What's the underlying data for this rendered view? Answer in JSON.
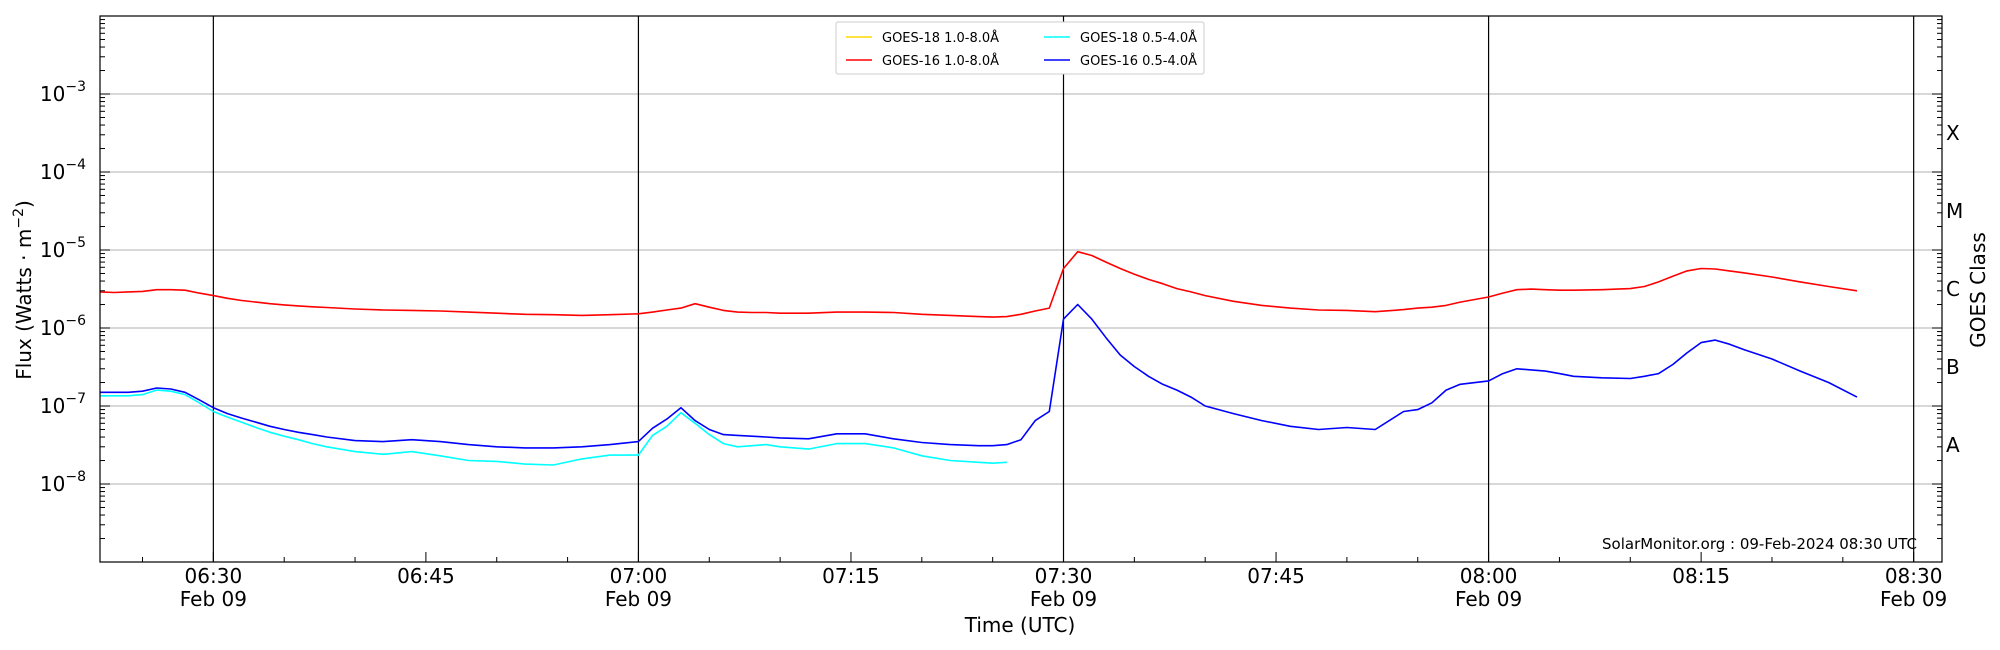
{
  "chart_data": {
    "type": "line",
    "xlabel": "Time (UTC)",
    "ylabel": "Flux (Watts · m",
    "ylabel_sup": "−2",
    "ylabel_close": ")",
    "right_label": "GOES Class",
    "credit": "SolarMonitor.org : 09-Feb-2024 08:30 UTC",
    "y_scale": "log",
    "ylim": [
      1e-09,
      0.01
    ],
    "xlim": [
      "06:22",
      "08:32"
    ],
    "grid": "horizontal",
    "legend_position": "top-center",
    "y_ticks": [
      {
        "exp": -8,
        "base": "10",
        "sup": "−8"
      },
      {
        "exp": -7,
        "base": "10",
        "sup": "−7"
      },
      {
        "exp": -6,
        "base": "10",
        "sup": "−6"
      },
      {
        "exp": -5,
        "base": "10",
        "sup": "−5"
      },
      {
        "exp": -4,
        "base": "10",
        "sup": "−4"
      },
      {
        "exp": -3,
        "base": "10",
        "sup": "−3"
      }
    ],
    "x_ticks": [
      {
        "t": "06:30",
        "label": "06:30",
        "date": "Feb 09",
        "major": true
      },
      {
        "t": "06:45",
        "label": "06:45",
        "date": "",
        "major": false
      },
      {
        "t": "07:00",
        "label": "07:00",
        "date": "Feb 09",
        "major": true
      },
      {
        "t": "07:15",
        "label": "07:15",
        "date": "",
        "major": false
      },
      {
        "t": "07:30",
        "label": "07:30",
        "date": "Feb 09",
        "major": true
      },
      {
        "t": "07:45",
        "label": "07:45",
        "date": "",
        "major": false
      },
      {
        "t": "08:00",
        "label": "08:00",
        "date": "Feb 09",
        "major": true
      },
      {
        "t": "08:15",
        "label": "08:15",
        "date": "",
        "major": false
      },
      {
        "t": "08:30",
        "label": "08:30",
        "date": "Feb 09",
        "major": true
      }
    ],
    "goes_classes": [
      {
        "label": "A",
        "exp": -7.5
      },
      {
        "label": "B",
        "exp": -6.5
      },
      {
        "label": "C",
        "exp": -5.5
      },
      {
        "label": "M",
        "exp": -4.5
      },
      {
        "label": "X",
        "exp": -3.5
      }
    ],
    "series": [
      {
        "name": "GOES-18 1.0-8.0Å",
        "color": "#ffd700",
        "x": [],
        "y": []
      },
      {
        "name": "GOES-16 1.0-8.0Å",
        "color": "#ff0000",
        "x": [
          "06:22",
          "06:23",
          "06:24",
          "06:25",
          "06:26",
          "06:27",
          "06:28",
          "06:29",
          "06:30",
          "06:31",
          "06:32",
          "06:33",
          "06:34",
          "06:35",
          "06:36",
          "06:37",
          "06:38",
          "06:40",
          "06:42",
          "06:44",
          "06:46",
          "06:48",
          "06:50",
          "06:52",
          "06:54",
          "06:56",
          "06:58",
          "07:00",
          "07:01",
          "07:02",
          "07:03",
          "07:04",
          "07:05",
          "07:06",
          "07:07",
          "07:08",
          "07:09",
          "07:10",
          "07:12",
          "07:14",
          "07:16",
          "07:18",
          "07:20",
          "07:22",
          "07:24",
          "07:25",
          "07:26",
          "07:27",
          "07:28",
          "07:29",
          "07:30",
          "07:31",
          "07:32",
          "07:33",
          "07:34",
          "07:35",
          "07:36",
          "07:37",
          "07:38",
          "07:39",
          "07:40",
          "07:42",
          "07:44",
          "07:46",
          "07:48",
          "07:50",
          "07:52",
          "07:54",
          "07:55",
          "07:56",
          "07:57",
          "07:58",
          "08:00",
          "08:01",
          "08:02",
          "08:03",
          "08:04",
          "08:05",
          "08:06",
          "08:08",
          "08:10",
          "08:11",
          "08:12",
          "08:13",
          "08:14",
          "08:15",
          "08:16",
          "08:17",
          "08:18",
          "08:20",
          "08:22",
          "08:24",
          "08:26"
        ],
        "y": [
          2.9e-06,
          2.85e-06,
          2.9e-06,
          2.95e-06,
          3.1e-06,
          3.1e-06,
          3.05e-06,
          2.8e-06,
          2.6e-06,
          2.4e-06,
          2.25e-06,
          2.15e-06,
          2.05e-06,
          1.98e-06,
          1.92e-06,
          1.87e-06,
          1.83e-06,
          1.75e-06,
          1.7e-06,
          1.68e-06,
          1.65e-06,
          1.6e-06,
          1.55e-06,
          1.5e-06,
          1.48e-06,
          1.45e-06,
          1.48e-06,
          1.52e-06,
          1.6e-06,
          1.7e-06,
          1.8e-06,
          2.05e-06,
          1.85e-06,
          1.68e-06,
          1.6e-06,
          1.58e-06,
          1.58e-06,
          1.55e-06,
          1.55e-06,
          1.6e-06,
          1.6e-06,
          1.58e-06,
          1.5e-06,
          1.45e-06,
          1.4e-06,
          1.38e-06,
          1.4e-06,
          1.5e-06,
          1.65e-06,
          1.8e-06,
          5.8e-06,
          9.5e-06,
          8.5e-06,
          7e-06,
          5.8e-06,
          4.9e-06,
          4.2e-06,
          3.7e-06,
          3.2e-06,
          2.9e-06,
          2.6e-06,
          2.2e-06,
          1.95e-06,
          1.8e-06,
          1.7e-06,
          1.68e-06,
          1.62e-06,
          1.72e-06,
          1.8e-06,
          1.85e-06,
          1.95e-06,
          2.15e-06,
          2.5e-06,
          2.8e-06,
          3.1e-06,
          3.15e-06,
          3.1e-06,
          3.05e-06,
          3.05e-06,
          3.1e-06,
          3.2e-06,
          3.4e-06,
          3.9e-06,
          4.6e-06,
          5.4e-06,
          5.8e-06,
          5.7e-06,
          5.4e-06,
          5.1e-06,
          4.5e-06,
          3.9e-06,
          3.4e-06,
          3e-06
        ]
      },
      {
        "name": "GOES-18 0.5-4.0Å",
        "color": "#00ffff",
        "x": [
          "06:22",
          "06:23",
          "06:24",
          "06:25",
          "06:26",
          "06:27",
          "06:28",
          "06:29",
          "06:30",
          "06:31",
          "06:32",
          "06:33",
          "06:34",
          "06:35",
          "06:36",
          "06:37",
          "06:38",
          "06:40",
          "06:42",
          "06:44",
          "06:46",
          "06:48",
          "06:50",
          "06:52",
          "06:54",
          "06:56",
          "06:58",
          "07:00",
          "07:01",
          "07:02",
          "07:03",
          "07:04",
          "07:05",
          "07:06",
          "07:07",
          "07:08",
          "07:09",
          "07:10",
          "07:12",
          "07:14",
          "07:16",
          "07:18",
          "07:20",
          "07:22",
          "07:24",
          "07:25",
          "07:26"
        ],
        "y": [
          1.35e-07,
          1.35e-07,
          1.35e-07,
          1.4e-07,
          1.6e-07,
          1.55e-07,
          1.4e-07,
          1.1e-07,
          8.5e-08,
          7.2e-08,
          6.2e-08,
          5.3e-08,
          4.6e-08,
          4.1e-08,
          3.7e-08,
          3.3e-08,
          3e-08,
          2.6e-08,
          2.4e-08,
          2.6e-08,
          2.3e-08,
          2e-08,
          1.95e-08,
          1.8e-08,
          1.75e-08,
          2.1e-08,
          2.35e-08,
          2.35e-08,
          4.2e-08,
          5.5e-08,
          8.2e-08,
          6e-08,
          4.3e-08,
          3.3e-08,
          3e-08,
          3.1e-08,
          3.2e-08,
          3e-08,
          2.8e-08,
          3.3e-08,
          3.3e-08,
          2.9e-08,
          2.3e-08,
          2e-08,
          1.9e-08,
          1.85e-08,
          1.9e-08
        ]
      },
      {
        "name": "GOES-16 0.5-4.0Å",
        "color": "#0000ff",
        "x": [
          "06:22",
          "06:23",
          "06:24",
          "06:25",
          "06:26",
          "06:27",
          "06:28",
          "06:29",
          "06:30",
          "06:31",
          "06:32",
          "06:33",
          "06:34",
          "06:35",
          "06:36",
          "06:37",
          "06:38",
          "06:40",
          "06:42",
          "06:44",
          "06:46",
          "06:48",
          "06:50",
          "06:52",
          "06:54",
          "06:56",
          "06:58",
          "07:00",
          "07:01",
          "07:02",
          "07:03",
          "07:04",
          "07:05",
          "07:06",
          "07:07",
          "07:08",
          "07:09",
          "07:10",
          "07:12",
          "07:14",
          "07:16",
          "07:18",
          "07:20",
          "07:22",
          "07:24",
          "07:25",
          "07:26",
          "07:27",
          "07:28",
          "07:29",
          "07:30",
          "07:31",
          "07:32",
          "07:33",
          "07:34",
          "07:35",
          "07:36",
          "07:37",
          "07:38",
          "07:39",
          "07:40",
          "07:42",
          "07:44",
          "07:46",
          "07:48",
          "07:50",
          "07:52",
          "07:54",
          "07:55",
          "07:56",
          "07:57",
          "07:58",
          "08:00",
          "08:01",
          "08:02",
          "08:03",
          "08:04",
          "08:05",
          "08:06",
          "08:08",
          "08:10",
          "08:11",
          "08:12",
          "08:13",
          "08:14",
          "08:15",
          "08:16",
          "08:17",
          "08:18",
          "08:20",
          "08:22",
          "08:24",
          "08:26"
        ],
        "y": [
          1.5e-07,
          1.5e-07,
          1.5e-07,
          1.55e-07,
          1.7e-07,
          1.65e-07,
          1.5e-07,
          1.2e-07,
          9.5e-08,
          8e-08,
          7e-08,
          6.2e-08,
          5.5e-08,
          5e-08,
          4.6e-08,
          4.3e-08,
          4e-08,
          3.6e-08,
          3.5e-08,
          3.7e-08,
          3.5e-08,
          3.2e-08,
          3e-08,
          2.9e-08,
          2.9e-08,
          3e-08,
          3.2e-08,
          3.5e-08,
          5.2e-08,
          6.8e-08,
          9.5e-08,
          6.5e-08,
          5e-08,
          4.3e-08,
          4.2e-08,
          4.1e-08,
          4e-08,
          3.9e-08,
          3.8e-08,
          4.4e-08,
          4.4e-08,
          3.8e-08,
          3.4e-08,
          3.2e-08,
          3.1e-08,
          3.1e-08,
          3.2e-08,
          3.7e-08,
          6.5e-08,
          8.5e-08,
          1.3e-06,
          2e-06,
          1.3e-06,
          7.5e-07,
          4.5e-07,
          3.2e-07,
          2.4e-07,
          1.9e-07,
          1.6e-07,
          1.3e-07,
          1e-07,
          8e-08,
          6.5e-08,
          5.5e-08,
          5e-08,
          5.3e-08,
          5e-08,
          8.5e-08,
          9e-08,
          1.1e-07,
          1.6e-07,
          1.9e-07,
          2.1e-07,
          2.6e-07,
          3e-07,
          2.9e-07,
          2.8e-07,
          2.6e-07,
          2.4e-07,
          2.3e-07,
          2.25e-07,
          2.4e-07,
          2.6e-07,
          3.4e-07,
          4.8e-07,
          6.5e-07,
          7e-07,
          6.2e-07,
          5.3e-07,
          4e-07,
          2.8e-07,
          2e-07,
          1.3e-07
        ]
      }
    ]
  }
}
